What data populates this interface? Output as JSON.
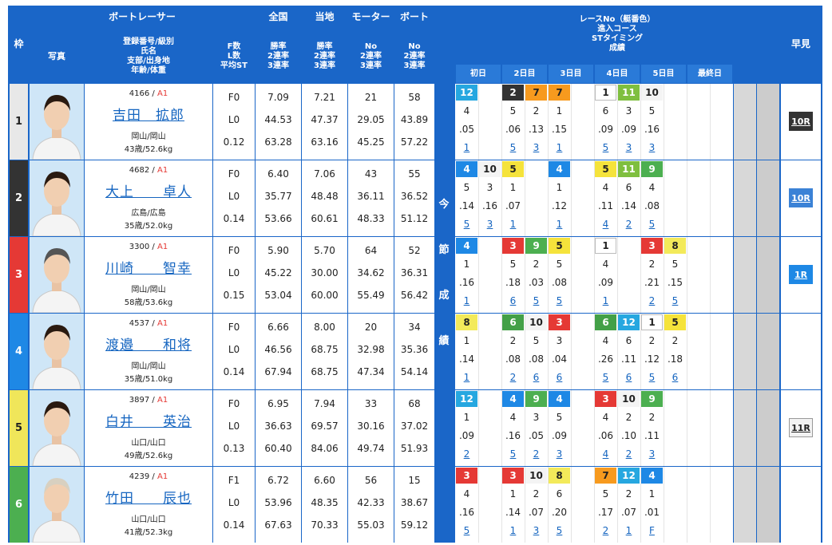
{
  "header": {
    "waku": "枠",
    "racer_group": "ボートレーサー",
    "photo": "写真",
    "reg": [
      "登録番号/級別",
      "氏名",
      "支部/出身地",
      "年齢/体重"
    ],
    "fls": [
      "F数",
      "L数",
      "平均ST"
    ],
    "zenkoku": "全国",
    "touchi": "当地",
    "motor": "モーター",
    "boat": "ボート",
    "rate3": [
      "勝率",
      "2連率",
      "3連率"
    ],
    "no3": [
      "No",
      "2連率",
      "3連率"
    ],
    "race_info": [
      "レースNo（艇番色）",
      "進入コース",
      "STタイミング",
      "成績"
    ],
    "days": [
      "初日",
      "2日目",
      "3日目",
      "4日目",
      "5日目",
      "最終日"
    ],
    "hayami": "早見",
    "konsetsu": [
      "今",
      "節",
      "成",
      "績"
    ]
  },
  "colors": {
    "1": "#ffffff",
    "2": "#333333",
    "3": "#e53935",
    "4": "#1e88e5",
    "5": "#f5e33b",
    "6": "#43a047",
    "7": "#f79a1e",
    "8": "#f3ea5a",
    "9": "#4caf50",
    "10": "#f4f4f4",
    "11": "#7fbf3f",
    "12": "#26a7e0"
  },
  "racers": [
    {
      "waku": "1",
      "reg": "4166",
      "cls": "A1",
      "name": "吉田　拡郎",
      "branch": "岡山/岡山",
      "age": "43歳/52.6kg",
      "f": "F0",
      "l": "L0",
      "st": "0.12",
      "z": [
        "7.09",
        "44.53",
        "63.28"
      ],
      "t": [
        "7.21",
        "47.37",
        "63.16"
      ],
      "m": [
        "21",
        "29.05",
        "45.25"
      ],
      "b": [
        "58",
        "43.89",
        "57.22"
      ],
      "hayami": "10R",
      "slots": [
        {
          "r": "12",
          "c": "4",
          "s": ".05",
          "f": "1"
        },
        {
          "r": "",
          "c": "",
          "s": "",
          "f": ""
        },
        {
          "r": "2",
          "c": "5",
          "s": ".06",
          "f": "5"
        },
        {
          "r": "7",
          "c": "2",
          "s": ".13",
          "f": "3"
        },
        {
          "r": "7",
          "c": "1",
          "s": ".15",
          "f": "1"
        },
        {
          "r": "",
          "c": "",
          "s": "",
          "f": ""
        },
        {
          "r": "1",
          "c": "6",
          "s": ".09",
          "f": "5"
        },
        {
          "r": "11",
          "c": "3",
          "s": ".09",
          "f": "3"
        },
        {
          "r": "10",
          "c": "5",
          "s": ".16",
          "f": "3"
        },
        {
          "r": "",
          "c": "",
          "s": "",
          "f": ""
        },
        {
          "r": "",
          "c": "",
          "s": "",
          "f": ""
        },
        {
          "r": "",
          "c": "",
          "s": "",
          "f": ""
        }
      ]
    },
    {
      "waku": "2",
      "reg": "4682",
      "cls": "A1",
      "name": "大上　　卓人",
      "branch": "広島/広島",
      "age": "35歳/52.0kg",
      "f": "F0",
      "l": "L0",
      "st": "0.14",
      "z": [
        "6.40",
        "35.77",
        "53.66"
      ],
      "t": [
        "7.06",
        "48.48",
        "60.61"
      ],
      "m": [
        "43",
        "36.11",
        "48.33"
      ],
      "b": [
        "55",
        "36.52",
        "51.12"
      ],
      "hayami": "10R",
      "slots": [
        {
          "r": "4",
          "c": "5",
          "s": ".14",
          "f": "5"
        },
        {
          "r": "10",
          "c": "3",
          "s": ".16",
          "f": "3"
        },
        {
          "r": "5",
          "c": "1",
          "s": ".07",
          "f": "1"
        },
        {
          "r": "",
          "c": "",
          "s": "",
          "f": ""
        },
        {
          "r": "4",
          "c": "1",
          "s": ".12",
          "f": "1"
        },
        {
          "r": "",
          "c": "",
          "s": "",
          "f": ""
        },
        {
          "r": "5",
          "c": "4",
          "s": ".11",
          "f": "4"
        },
        {
          "r": "11",
          "c": "6",
          "s": ".14",
          "f": "2"
        },
        {
          "r": "9",
          "c": "4",
          "s": ".08",
          "f": "5"
        },
        {
          "r": "",
          "c": "",
          "s": "",
          "f": ""
        },
        {
          "r": "",
          "c": "",
          "s": "",
          "f": ""
        },
        {
          "r": "",
          "c": "",
          "s": "",
          "f": ""
        }
      ]
    },
    {
      "waku": "3",
      "reg": "3300",
      "cls": "A1",
      "name": "川崎　　智幸",
      "branch": "岡山/岡山",
      "age": "58歳/53.6kg",
      "f": "F0",
      "l": "L0",
      "st": "0.15",
      "z": [
        "5.90",
        "45.22",
        "53.04"
      ],
      "t": [
        "5.70",
        "30.00",
        "60.00"
      ],
      "m": [
        "64",
        "34.62",
        "55.49"
      ],
      "b": [
        "52",
        "36.31",
        "56.42"
      ],
      "hayami": "1R",
      "slots": [
        {
          "r": "4",
          "c": "1",
          "s": ".16",
          "f": "1"
        },
        {
          "r": "",
          "c": "",
          "s": "",
          "f": ""
        },
        {
          "r": "3",
          "c": "5",
          "s": ".18",
          "f": "6"
        },
        {
          "r": "9",
          "c": "2",
          "s": ".03",
          "f": "5"
        },
        {
          "r": "5",
          "c": "5",
          "s": ".08",
          "f": "5"
        },
        {
          "r": "",
          "c": "",
          "s": "",
          "f": ""
        },
        {
          "r": "1",
          "c": "4",
          "s": ".09",
          "f": "1"
        },
        {
          "r": "",
          "c": "",
          "s": "",
          "f": ""
        },
        {
          "r": "3",
          "c": "2",
          "s": ".21",
          "f": "2"
        },
        {
          "r": "8",
          "c": "5",
          "s": ".15",
          "f": "5"
        },
        {
          "r": "",
          "c": "",
          "s": "",
          "f": ""
        },
        {
          "r": "",
          "c": "",
          "s": "",
          "f": ""
        }
      ]
    },
    {
      "waku": "4",
      "reg": "4537",
      "cls": "A1",
      "name": "渡邉　　和将",
      "branch": "岡山/岡山",
      "age": "35歳/51.0kg",
      "f": "F0",
      "l": "L0",
      "st": "0.14",
      "z": [
        "6.66",
        "46.56",
        "67.94"
      ],
      "t": [
        "8.00",
        "68.75",
        "68.75"
      ],
      "m": [
        "20",
        "32.98",
        "47.34"
      ],
      "b": [
        "34",
        "35.36",
        "54.14"
      ],
      "hayami": "",
      "slots": [
        {
          "r": "8",
          "c": "1",
          "s": ".14",
          "f": "1"
        },
        {
          "r": "",
          "c": "",
          "s": "",
          "f": ""
        },
        {
          "r": "6",
          "c": "2",
          "s": ".08",
          "f": "2"
        },
        {
          "r": "10",
          "c": "5",
          "s": ".08",
          "f": "6"
        },
        {
          "r": "3",
          "c": "3",
          "s": ".04",
          "f": "6"
        },
        {
          "r": "",
          "c": "",
          "s": "",
          "f": ""
        },
        {
          "r": "6",
          "c": "4",
          "s": ".26",
          "f": "5"
        },
        {
          "r": "12",
          "c": "6",
          "s": ".11",
          "f": "6"
        },
        {
          "r": "1",
          "c": "2",
          "s": ".12",
          "f": "5"
        },
        {
          "r": "5",
          "c": "2",
          "s": ".18",
          "f": "6"
        },
        {
          "r": "",
          "c": "",
          "s": "",
          "f": ""
        },
        {
          "r": "",
          "c": "",
          "s": "",
          "f": ""
        }
      ]
    },
    {
      "waku": "5",
      "reg": "3897",
      "cls": "A1",
      "name": "白井　　英治",
      "branch": "山口/山口",
      "age": "49歳/52.6kg",
      "f": "F0",
      "l": "L0",
      "st": "0.13",
      "z": [
        "6.95",
        "36.63",
        "60.40"
      ],
      "t": [
        "7.94",
        "69.57",
        "84.06"
      ],
      "m": [
        "33",
        "30.16",
        "49.74"
      ],
      "b": [
        "68",
        "37.02",
        "51.93"
      ],
      "hayami": "11R",
      "slots": [
        {
          "r": "12",
          "c": "1",
          "s": ".09",
          "f": "2"
        },
        {
          "r": "",
          "c": "",
          "s": "",
          "f": ""
        },
        {
          "r": "4",
          "c": "4",
          "s": ".16",
          "f": "5"
        },
        {
          "r": "9",
          "c": "3",
          "s": ".05",
          "f": "2"
        },
        {
          "r": "4",
          "c": "5",
          "s": ".09",
          "f": "3"
        },
        {
          "r": "",
          "c": "",
          "s": "",
          "f": ""
        },
        {
          "r": "3",
          "c": "4",
          "s": ".06",
          "f": "4"
        },
        {
          "r": "10",
          "c": "2",
          "s": ".10",
          "f": "2"
        },
        {
          "r": "9",
          "c": "2",
          "s": ".11",
          "f": "3"
        },
        {
          "r": "",
          "c": "",
          "s": "",
          "f": ""
        },
        {
          "r": "",
          "c": "",
          "s": "",
          "f": ""
        },
        {
          "r": "",
          "c": "",
          "s": "",
          "f": ""
        }
      ]
    },
    {
      "waku": "6",
      "reg": "4239",
      "cls": "A1",
      "name": "竹田　　辰也",
      "branch": "山口/山口",
      "age": "41歳/52.3kg",
      "f": "F1",
      "l": "L0",
      "st": "0.14",
      "z": [
        "6.72",
        "53.96",
        "67.63"
      ],
      "t": [
        "6.60",
        "48.35",
        "70.33"
      ],
      "m": [
        "56",
        "42.33",
        "55.03"
      ],
      "b": [
        "15",
        "38.67",
        "59.12"
      ],
      "hayami": "",
      "slots": [
        {
          "r": "3",
          "c": "4",
          "s": ".16",
          "f": "5"
        },
        {
          "r": "",
          "c": "",
          "s": "",
          "f": ""
        },
        {
          "r": "3",
          "c": "1",
          "s": ".14",
          "f": "1"
        },
        {
          "r": "10",
          "c": "2",
          "s": ".07",
          "f": "3"
        },
        {
          "r": "8",
          "c": "6",
          "s": ".20",
          "f": "5"
        },
        {
          "r": "",
          "c": "",
          "s": "",
          "f": ""
        },
        {
          "r": "7",
          "c": "5",
          "s": ".17",
          "f": "2"
        },
        {
          "r": "12",
          "c": "2",
          "s": ".07",
          "f": "1"
        },
        {
          "r": "4",
          "c": "1",
          "s": ".01",
          "f": "F"
        },
        {
          "r": "",
          "c": "",
          "s": "",
          "f": ""
        },
        {
          "r": "",
          "c": "",
          "s": "",
          "f": ""
        },
        {
          "r": "",
          "c": "",
          "s": "",
          "f": ""
        }
      ]
    }
  ]
}
